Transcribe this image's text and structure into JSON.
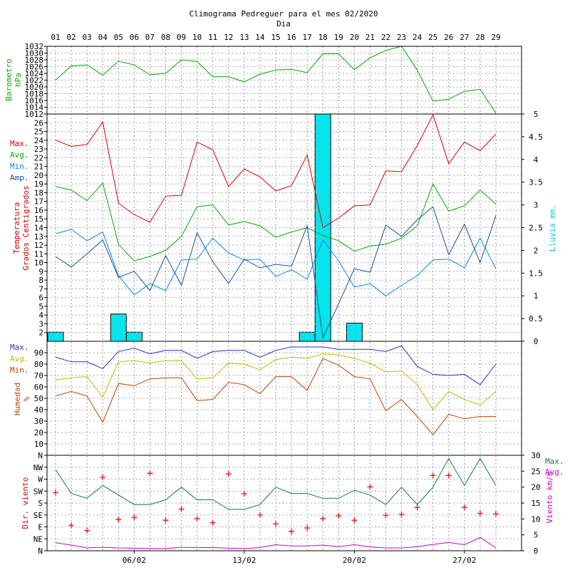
{
  "chart_data": {
    "type": "line",
    "title": "Climograma Pedreguer para el mes 02/2020",
    "x_axis_label": "Dia",
    "days": [
      "01",
      "02",
      "03",
      "04",
      "05",
      "06",
      "07",
      "08",
      "09",
      "10",
      "11",
      "12",
      "13",
      "14",
      "15",
      "16",
      "17",
      "18",
      "19",
      "20",
      "21",
      "22",
      "23",
      "24",
      "25",
      "26",
      "27",
      "28",
      "29"
    ],
    "bottom_ticks": [
      {
        "day": 6,
        "label": "06/02"
      },
      {
        "day": 13,
        "label": "13/02"
      },
      {
        "day": 20,
        "label": "20/02"
      },
      {
        "day": 27,
        "label": "27/02"
      }
    ],
    "panels": {
      "pressure": {
        "ylabel": [
          "Barometro",
          "hPa"
        ],
        "ylim": [
          1012,
          1032
        ],
        "ticks": [
          1012,
          1014,
          1016,
          1018,
          1020,
          1022,
          1024,
          1026,
          1028,
          1030,
          1032
        ],
        "series": [
          {
            "name": "Barometro",
            "color": "#00aa00",
            "values": [
              1022,
              1026.2,
              1026.5,
              1023.5,
              1027.6,
              1026.5,
              1023.6,
              1024,
              1028,
              1027.5,
              1023,
              1023,
              1021.5,
              1023.8,
              1025,
              1025.2,
              1024.2,
              1029.8,
              1029.8,
              1025.1,
              1028.6,
              1030.8,
              1032,
              1025,
              1015.8,
              1016.4,
              1018.7,
              1019.3,
              1012.2
            ]
          }
        ]
      },
      "temperature": {
        "ylabel": [
          "Temperatura",
          "Grados Centigrados"
        ],
        "ylim": [
          1,
          27
        ],
        "ticks": [
          2,
          3,
          4,
          5,
          6,
          7,
          8,
          9,
          10,
          11,
          12,
          13,
          14,
          15,
          16,
          17,
          18,
          19,
          20,
          21,
          22,
          23,
          24,
          25,
          26
        ],
        "right_ylabel": "Lluvia mm.",
        "right_ylim": [
          0,
          5
        ],
        "right_ticks": [
          "0",
          "0.5",
          "1",
          "1.5",
          "2",
          "2.5",
          "3",
          "3.5",
          "4",
          "4.5",
          "5"
        ],
        "legend": [
          "Max.",
          "Avg.",
          "Min.",
          "Amp."
        ],
        "series": [
          {
            "name": "Max.",
            "color": "#dd0000",
            "values": [
              24,
              23.3,
              23.5,
              26.1,
              16.8,
              15.5,
              14.6,
              17.6,
              17.7,
              23.8,
              22.9,
              18.7,
              20.7,
              19.8,
              18.2,
              18.8,
              22.3,
              14,
              15.1,
              16.5,
              16.6,
              20.5,
              20.4,
              23.4,
              26.9,
              21.3,
              23.8,
              22.8,
              24.7
            ]
          },
          {
            "name": "Avg.",
            "color": "#00aa00",
            "values": [
              18.7,
              18.3,
              17.1,
              19.1,
              12.1,
              10.2,
              10.7,
              11.4,
              13,
              16.4,
              16.6,
              14.3,
              14.7,
              14.2,
              12.9,
              13.5,
              14,
              13.1,
              12.5,
              11.3,
              11.9,
              12.1,
              12.8,
              14.2,
              19,
              15.9,
              16.5,
              18.3,
              16.7
            ]
          },
          {
            "name": "Min.",
            "color": "#0088ee",
            "values": [
              13.3,
              13.8,
              12.5,
              13.5,
              8.5,
              6.3,
              7.6,
              6.8,
              10.3,
              10.4,
              12.8,
              11.1,
              10.3,
              10.4,
              8.4,
              9.2,
              8.1,
              12.6,
              10.2,
              7.2,
              7.6,
              6.2,
              7.4,
              8.5,
              10.3,
              10.4,
              9.4,
              12.8,
              9.3
            ]
          },
          {
            "name": "Amp.",
            "color": "#1a4f9a",
            "values": [
              10.7,
              9.5,
              11,
              12.6,
              8.3,
              9,
              6.8,
              10.8,
              7.4,
              13.4,
              10.1,
              7.6,
              10.4,
              9.4,
              9.8,
              9.6,
              14.2,
              1.4,
              5.3,
              9.3,
              8.9,
              14.3,
              13,
              14.9,
              16.4,
              10.9,
              14.4,
              10,
              15.4
            ]
          }
        ],
        "rain": {
          "name": "Lluvia mm.",
          "color": "#00e5ee",
          "values": [
            0.2,
            0,
            0,
            0,
            0.6,
            0.2,
            0,
            0,
            0,
            0,
            0,
            0,
            0,
            0,
            0,
            0,
            0.2,
            5,
            0,
            0.4,
            0,
            0,
            0,
            0,
            0,
            0,
            0,
            0,
            0
          ]
        }
      },
      "humidity": {
        "ylabel": [
          "Humedad",
          "%"
        ],
        "ylim": [
          0,
          100
        ],
        "ticks": [
          10,
          20,
          30,
          40,
          50,
          60,
          70,
          80,
          90
        ],
        "legend": [
          "Max.",
          "Avg.",
          "Min."
        ],
        "series": [
          {
            "name": "Max.",
            "color": "#2233cc",
            "values": [
              86,
              82,
              82,
              76,
              91,
              94,
              89,
              92,
              92,
              85,
              91,
              92,
              92,
              86,
              92,
              95,
              95,
              95,
              93,
              93,
              93,
              91,
              96,
              78,
              71,
              70,
              71,
              62,
              80
            ]
          },
          {
            "name": "Avg.",
            "color": "#bbbb00",
            "values": [
              66,
              68,
              69,
              51,
              82,
              83,
              81,
              83,
              83,
              67,
              68,
              81,
              80,
              75,
              84,
              86,
              85,
              89,
              88,
              85,
              81,
              73,
              74,
              62,
              40,
              56,
              49,
              44,
              56
            ]
          },
          {
            "name": "Min.",
            "color": "#bb4400",
            "values": [
              52,
              56,
              52,
              29,
              63,
              61,
              67,
              68,
              68,
              48,
              49,
              64,
              62,
              54,
              69,
              69,
              57,
              85,
              79,
              69,
              67,
              39,
              49,
              34,
              18,
              36,
              32,
              34,
              34
            ]
          }
        ]
      },
      "wind": {
        "left_ylabel": "Dir. viento",
        "left_ticks": [
          "N",
          "NE",
          "E",
          "SE",
          "S",
          "SW",
          "W",
          "NW",
          "N"
        ],
        "right_ylabel": "Viento km/h",
        "right_ylim": [
          0,
          30
        ],
        "right_ticks": [
          0,
          5,
          10,
          15,
          20,
          25,
          30
        ],
        "legend": [
          "Max.",
          "Avg."
        ],
        "direction_degrees": [
          219,
          96,
          76,
          277,
          118,
          126,
          292,
          115,
          157,
          121,
          106,
          290,
          215,
          135,
          101,
          73,
          86,
          121,
          132,
          115,
          241,
          134,
          137,
          163,
          284,
          284,
          164,
          141,
          139
        ],
        "series": [
          {
            "name": "Max.",
            "color": "#117755",
            "values": [
              25.5,
              18,
              16.5,
              20.5,
              17.5,
              14.5,
              14.5,
              16,
              20,
              16,
              16,
              13,
              13,
              14.5,
              20,
              18,
              18,
              16.5,
              16.5,
              19,
              17.5,
              14.5,
              20,
              14.5,
              20,
              29,
              20.5,
              29,
              20.5
            ]
          },
          {
            "name": "Avg.",
            "color": "#cc00cc",
            "values": [
              2.5,
              1.8,
              0.9,
              1.1,
              0.9,
              0.8,
              0.7,
              0.7,
              1.1,
              1,
              1,
              0.8,
              0.7,
              1,
              1.9,
              1.5,
              1.5,
              1.8,
              1.3,
              1.9,
              1.2,
              0.9,
              0.9,
              1.3,
              2,
              2.6,
              1.9,
              4.2,
              0.9
            ]
          }
        ]
      }
    }
  }
}
